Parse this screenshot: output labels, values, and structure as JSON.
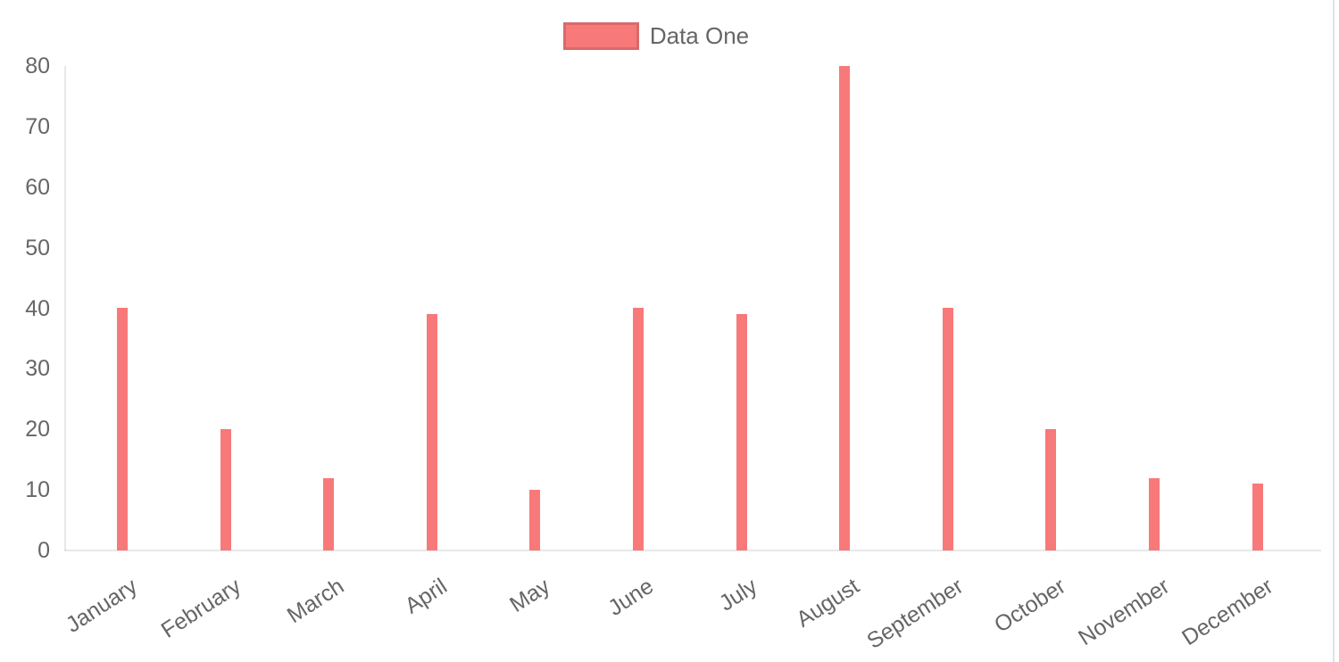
{
  "page": {
    "background": "#ffffff",
    "right_border_color": "#e2e2e2"
  },
  "legend": {
    "label": "Data One",
    "swatch_color": "#f87979",
    "position": "top"
  },
  "chart_data": {
    "type": "bar",
    "title": "",
    "categories": [
      "January",
      "February",
      "March",
      "April",
      "May",
      "June",
      "July",
      "August",
      "September",
      "October",
      "November",
      "December"
    ],
    "series": [
      {
        "name": "Data One",
        "color": "#f87979",
        "values": [
          40,
          20,
          12,
          39,
          10,
          40,
          39,
          80,
          40,
          20,
          12,
          11
        ]
      }
    ],
    "xlabel": "",
    "ylabel": "",
    "ylim": [
      0,
      80
    ],
    "yticks": [
      0,
      10,
      20,
      30,
      40,
      50,
      60,
      70,
      80
    ],
    "grid": false,
    "legend_position": "top",
    "x_tick_rotation_deg": -33,
    "axis_line_color": "rgba(0,0,0,0.09)",
    "tick_label_color": "#666666"
  }
}
